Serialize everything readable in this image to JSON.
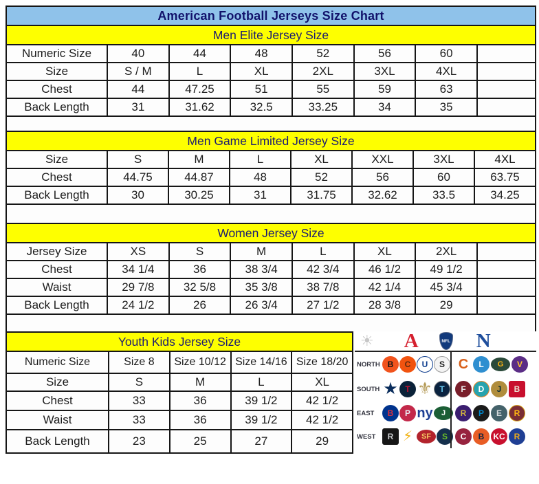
{
  "title": "American Football Jerseys Size Chart",
  "colors": {
    "title_bar_bg": "#8fc2ea",
    "title_text": "#12126b",
    "section_header_bg": "#feff00",
    "section_header_text": "#1a1a72",
    "table_border": "#161616",
    "afc_red": "#d5202f",
    "nfc_blue": "#1f4e9c"
  },
  "tables": [
    {
      "header": "Men Elite Jersey Size",
      "rows": [
        {
          "label": "Numeric Size",
          "values": [
            "40",
            "44",
            "48",
            "52",
            "56",
            "60",
            ""
          ]
        },
        {
          "label": "Size",
          "values": [
            "S / M",
            "L",
            "XL",
            "2XL",
            "3XL",
            "4XL",
            ""
          ]
        },
        {
          "label": "Chest",
          "values": [
            "44",
            "47.25",
            "51",
            "55",
            "59",
            "63",
            ""
          ]
        },
        {
          "label": "Back Length",
          "values": [
            "31",
            "31.62",
            "32.5",
            "33.25",
            "34",
            "35",
            ""
          ]
        }
      ]
    },
    {
      "header": "Men Game Limited Jersey Size",
      "rows": [
        {
          "label": "Size",
          "values": [
            "S",
            "M",
            "L",
            "XL",
            "XXL",
            "3XL",
            "4XL"
          ]
        },
        {
          "label": "Chest",
          "values": [
            "44.75",
            "44.87",
            "48",
            "52",
            "56",
            "60",
            "63.75"
          ]
        },
        {
          "label": "Back Length",
          "values": [
            "30",
            "30.25",
            "31",
            "31.75",
            "32.62",
            "33.5",
            "34.25"
          ]
        }
      ]
    },
    {
      "header": "Women Jersey Size",
      "rows": [
        {
          "label": "Jersey Size",
          "values": [
            "XS",
            "S",
            "M",
            "L",
            "XL",
            "2XL",
            ""
          ]
        },
        {
          "label": "Chest",
          "values": [
            "34 1/4",
            "36",
            "38 3/4",
            "42 3/4",
            "46 1/2",
            "49 1/2",
            ""
          ]
        },
        {
          "label": "Waist",
          "values": [
            "29 7/8",
            "32 5/8",
            "35 3/8",
            "38 7/8",
            "42 1/4",
            "45 3/4",
            ""
          ]
        },
        {
          "label": "Back Length",
          "values": [
            "24 1/2",
            "26",
            "26 3/4",
            "27 1/2",
            "28 3/8",
            "29",
            ""
          ]
        }
      ]
    },
    {
      "header": "Youth Kids Jersey Size",
      "rows": [
        {
          "label": "Numeric Size",
          "values": [
            "Size 8",
            "Size 10/12",
            "Size 14/16",
            "Size 18/20"
          ]
        },
        {
          "label": "Size",
          "values": [
            "S",
            "M",
            "L",
            "XL"
          ]
        },
        {
          "label": "Chest",
          "values": [
            "33",
            "36",
            "39 1/2",
            "42 1/2"
          ]
        },
        {
          "label": "Waist",
          "values": [
            "33",
            "36",
            "39 1/2",
            "42 1/2"
          ]
        },
        {
          "label": "Back Length",
          "values": [
            "23",
            "25",
            "27",
            "29"
          ]
        }
      ]
    }
  ],
  "logo_panel": {
    "header": {
      "sun_glyph": "☀",
      "afc_label": "A",
      "nfl_label": "NFL",
      "nfc_label": "N"
    },
    "rows": [
      {
        "label": "NORTH",
        "afc": [
          {
            "team": "bengals",
            "glyph": "B",
            "bg": "#f1531d",
            "fg": "#141414"
          },
          {
            "team": "browns",
            "glyph": "C",
            "bg": "#f1530f",
            "fg": "#5c2b10"
          },
          {
            "team": "colts",
            "glyph": "U",
            "bg": "#ffffff",
            "fg": "#0a3a8c",
            "border": "#0a3a8c"
          },
          {
            "team": "steelers",
            "glyph": "S",
            "bg": "#f3f3f3",
            "fg": "#1a1a1a",
            "border": "#9a9a9a"
          }
        ],
        "nfc": [
          {
            "team": "bears",
            "glyph": "C",
            "fg": "#d8611c",
            "shape": "plain small"
          },
          {
            "team": "lions",
            "glyph": "L",
            "bg": "#2f8fd0",
            "fg": "#ffffff"
          },
          {
            "team": "packers",
            "glyph": "G",
            "bg": "#2a4a3a",
            "fg": "#ffb612",
            "shape": "oval"
          },
          {
            "team": "vikings",
            "glyph": "V",
            "bg": "#5b2d86",
            "fg": "#ffc62f"
          }
        ]
      },
      {
        "label": "SOUTH",
        "afc": [
          {
            "team": "cowboys",
            "glyph": "★",
            "fg": "#0a2d5c",
            "shape": "plain"
          },
          {
            "team": "texans",
            "glyph": "T",
            "bg": "#0b2239",
            "fg": "#c41230"
          },
          {
            "team": "saints",
            "glyph": "⚜",
            "fg": "#b49a57",
            "shape": "plain"
          },
          {
            "team": "titans",
            "glyph": "T",
            "bg": "#0b2340",
            "fg": "#65c1e8",
            "border": "#8a8a8a"
          }
        ],
        "nfc": [
          {
            "team": "falcons",
            "glyph": "F",
            "bg": "#7a1f2b",
            "fg": "#e8e8e8"
          },
          {
            "team": "dolphins",
            "glyph": "D",
            "bg": "#27a3ae",
            "fg": "#ffffff",
            "border": "#f58220"
          },
          {
            "team": "jaguars",
            "glyph": "J",
            "bg": "#b08d3c",
            "fg": "#0b2d33"
          },
          {
            "team": "buccaneers",
            "glyph": "B",
            "bg": "#c8102e",
            "fg": "#e8e0d0",
            "shape": "rect"
          }
        ]
      },
      {
        "label": "EAST",
        "afc": [
          {
            "team": "bills",
            "glyph": "B",
            "bg": "#00338d",
            "fg": "#d8303f"
          },
          {
            "team": "patriots",
            "glyph": "P",
            "bg": "#c3294a",
            "fg": "#e8ecf2"
          },
          {
            "team": "giants",
            "glyph": "ny",
            "fg": "#1d3f94",
            "shape": "plain small"
          },
          {
            "team": "jets",
            "glyph": "J",
            "bg": "#1b5e35",
            "fg": "#ffffff",
            "shape": "oval"
          }
        ],
        "nfc": [
          {
            "team": "ravens",
            "glyph": "R",
            "bg": "#3b1e70",
            "fg": "#d0b240"
          },
          {
            "team": "panthers",
            "glyph": "P",
            "bg": "#1a1a1a",
            "fg": "#0085ca"
          },
          {
            "team": "eagles",
            "glyph": "E",
            "bg": "#44626a",
            "fg": "#d5dadc"
          },
          {
            "team": "redskins",
            "glyph": "R",
            "bg": "#7a2d35",
            "fg": "#ffb612",
            "border": "#d9a618"
          }
        ]
      },
      {
        "label": "WEST",
        "afc": [
          {
            "team": "raiders",
            "glyph": "R",
            "bg": "#161616",
            "fg": "#c9cbcd",
            "shape": "rect"
          },
          {
            "team": "chargers",
            "glyph": "⚡",
            "fg": "#f2b51c",
            "shape": "plain small"
          },
          {
            "team": "fortyniners",
            "glyph": "SF",
            "bg": "#b3232c",
            "fg": "#f0c060",
            "shape": "oval"
          },
          {
            "team": "seahawks",
            "glyph": "S",
            "bg": "#15304d",
            "fg": "#69be28"
          }
        ],
        "nfc": [
          {
            "team": "cardinals",
            "glyph": "C",
            "bg": "#97233f",
            "fg": "#ffffff"
          },
          {
            "team": "broncos",
            "glyph": "B",
            "bg": "#e85d25",
            "fg": "#0b2340"
          },
          {
            "team": "chiefs",
            "glyph": "KC",
            "bg": "#c8102e",
            "fg": "#ffffff"
          },
          {
            "team": "rams",
            "glyph": "R",
            "bg": "#1f3f94",
            "fg": "#eead1a"
          }
        ]
      }
    ]
  }
}
